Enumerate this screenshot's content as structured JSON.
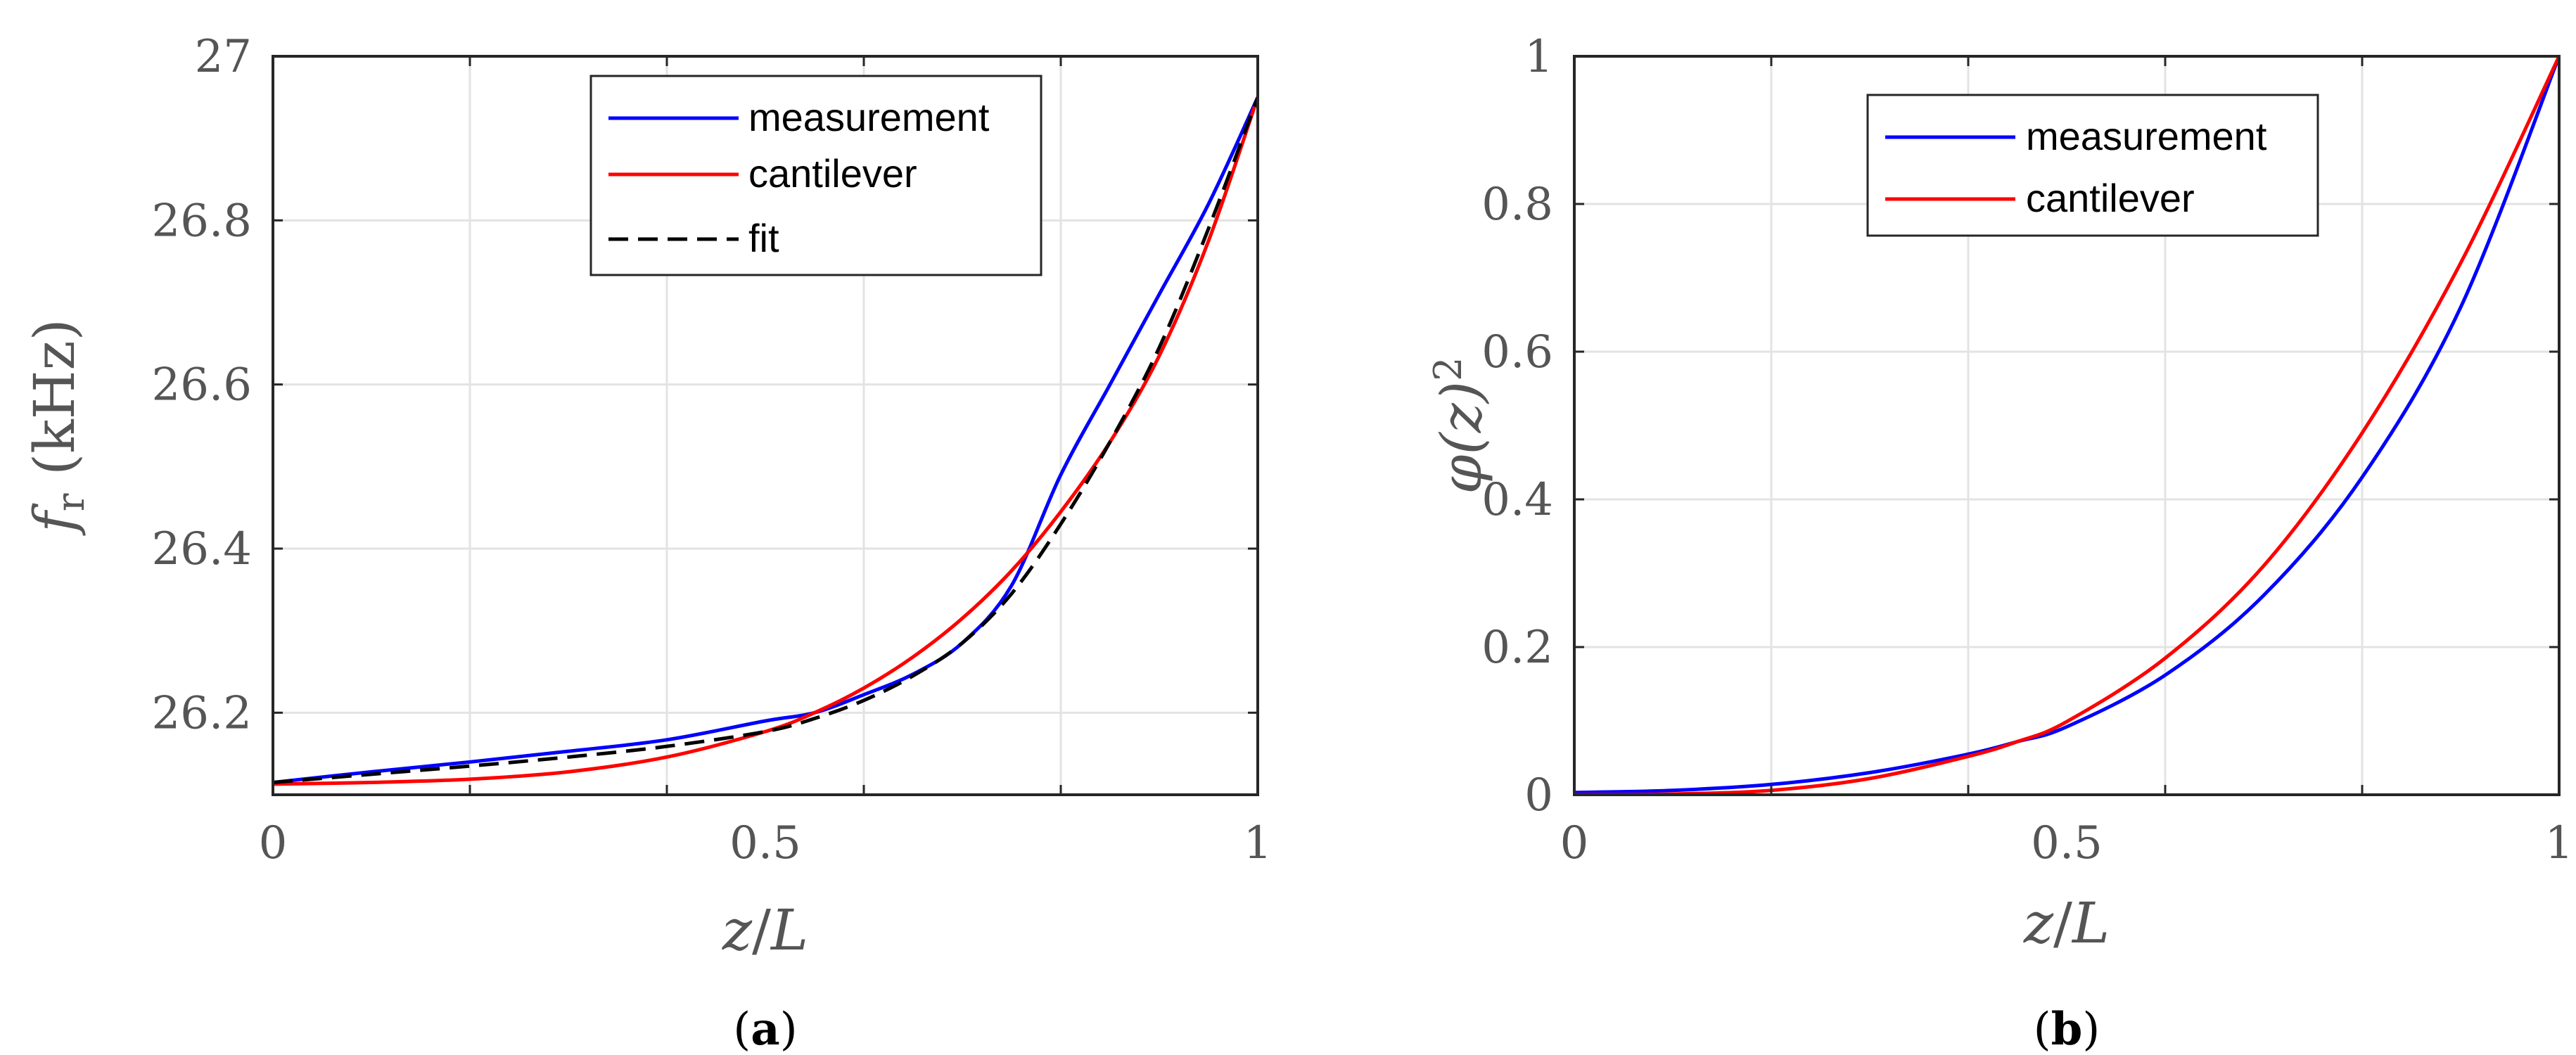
{
  "chart_data": [
    {
      "type": "line",
      "panel_caption_open": "(",
      "panel_caption": "a",
      "panel_caption_close": ")",
      "ylabel_symbol": "f",
      "ylabel_sub": "r",
      "ylabel_unit": " (kHz)",
      "xlabel_var": "z",
      "xlabel_sep": "/",
      "xlabel_den": "L",
      "xlim": [
        0,
        1
      ],
      "ylim": [
        26.1,
        27.0
      ],
      "xticks": [
        0,
        0.5,
        1
      ],
      "xtick_labels": [
        "0",
        "0.5",
        "1"
      ],
      "yticks": [
        26.2,
        26.4,
        26.6,
        26.8,
        27.0
      ],
      "ytick_labels": [
        "26.2",
        "26.4",
        "26.6",
        "26.8",
        "27"
      ],
      "grid": true,
      "legend_position": "top-right",
      "series": [
        {
          "name": "measurement",
          "color": "#0000ff",
          "dash": "solid",
          "x": [
            0,
            0.1,
            0.2,
            0.3,
            0.4,
            0.5,
            0.55,
            0.6,
            0.65,
            0.7,
            0.75,
            0.8,
            0.85,
            0.9,
            0.95,
            1.0
          ],
          "y": [
            26.115,
            26.128,
            26.14,
            26.153,
            26.167,
            26.19,
            26.2,
            26.222,
            26.247,
            26.285,
            26.355,
            26.49,
            26.6,
            26.71,
            26.82,
            26.95
          ]
        },
        {
          "name": "cantilever",
          "color": "#ff0000",
          "dash": "solid",
          "x": [
            0,
            0.1,
            0.2,
            0.3,
            0.4,
            0.5,
            0.55,
            0.6,
            0.65,
            0.7,
            0.75,
            0.8,
            0.85,
            0.9,
            0.95,
            1.0
          ],
          "y": [
            26.113,
            26.115,
            26.119,
            26.128,
            26.146,
            26.177,
            26.2,
            26.23,
            26.268,
            26.315,
            26.373,
            26.445,
            26.53,
            26.635,
            26.775,
            26.95
          ]
        },
        {
          "name": "fit",
          "color": "#000000",
          "dash": "dashed",
          "x": [
            0,
            0.1,
            0.2,
            0.3,
            0.4,
            0.5,
            0.55,
            0.6,
            0.65,
            0.7,
            0.75,
            0.8,
            0.85,
            0.9,
            0.95,
            1.0
          ],
          "y": [
            26.115,
            26.125,
            26.135,
            26.146,
            26.159,
            26.177,
            26.193,
            26.215,
            26.245,
            26.285,
            26.345,
            26.43,
            26.53,
            26.645,
            26.79,
            26.95
          ]
        }
      ]
    },
    {
      "type": "line",
      "panel_caption_open": "(",
      "panel_caption": "b",
      "panel_caption_close": ")",
      "ylabel_phi": "φ",
      "ylabel_arg": "(z)",
      "ylabel_pow": "2",
      "xlabel_var": "z",
      "xlabel_sep": "/",
      "xlabel_den": "L",
      "xlim": [
        0,
        1
      ],
      "ylim": [
        0,
        1
      ],
      "xticks": [
        0,
        0.5,
        1
      ],
      "xtick_labels": [
        "0",
        "0.5",
        "1"
      ],
      "yticks": [
        0,
        0.2,
        0.4,
        0.6,
        0.8,
        1.0
      ],
      "ytick_labels": [
        "0",
        "0.2",
        "0.4",
        "0.6",
        "0.8",
        "1"
      ],
      "grid": true,
      "legend_position": "top-right",
      "series": [
        {
          "name": "measurement",
          "color": "#0000ff",
          "dash": "solid",
          "x": [
            0,
            0.1,
            0.2,
            0.3,
            0.4,
            0.45,
            0.5,
            0.6,
            0.7,
            0.8,
            0.9,
            1.0
          ],
          "y": [
            0.003,
            0.006,
            0.014,
            0.03,
            0.055,
            0.072,
            0.092,
            0.162,
            0.27,
            0.43,
            0.66,
            1.0
          ]
        },
        {
          "name": "cantilever",
          "color": "#ff0000",
          "dash": "solid",
          "x": [
            0,
            0.1,
            0.2,
            0.3,
            0.4,
            0.45,
            0.5,
            0.6,
            0.7,
            0.8,
            0.9,
            1.0
          ],
          "y": [
            0.0,
            0.001,
            0.006,
            0.022,
            0.052,
            0.072,
            0.099,
            0.185,
            0.31,
            0.49,
            0.72,
            1.0
          ]
        }
      ]
    }
  ]
}
